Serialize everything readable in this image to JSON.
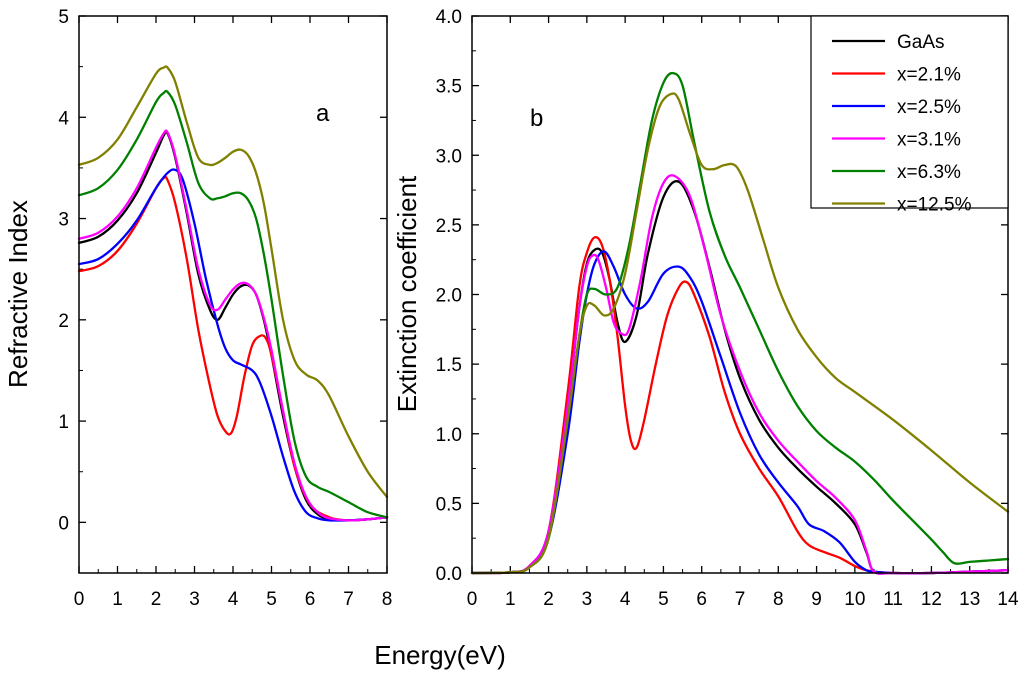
{
  "shared_xlabel": "Energy(eV)",
  "legend": [
    "GaAs",
    "x=2.1%",
    "x=2.5%",
    "x=3.1%",
    "x=6.3%",
    "x=12.5%"
  ],
  "series_colors": [
    "#000000",
    "#ff0000",
    "#0000ff",
    "#ff00ff",
    "#008000",
    "#808000"
  ],
  "chart_data": [
    {
      "type": "line",
      "panel_label": "a",
      "title": "",
      "xlabel": "Energy(eV)",
      "ylabel": "Refractive Index",
      "xlim": [
        0,
        8
      ],
      "ylim": [
        -0.5,
        5
      ],
      "xticks": [
        "0",
        "1",
        "2",
        "3",
        "4",
        "5",
        "6",
        "7",
        "8"
      ],
      "yticks": [
        "0",
        "1",
        "2",
        "3",
        "4",
        "5"
      ],
      "series": [
        {
          "name": "GaAs",
          "x": [
            0,
            0.5,
            1,
            1.5,
            2,
            2.2,
            2.3,
            2.5,
            2.8,
            3.1,
            3.4,
            3.6,
            3.8,
            4.0,
            4.2,
            4.4,
            4.6,
            4.8,
            5.0,
            5.3,
            5.6,
            5.9,
            6.2,
            6.5,
            7.0,
            7.5,
            8.0
          ],
          "y": [
            2.76,
            2.82,
            2.98,
            3.25,
            3.65,
            3.82,
            3.84,
            3.6,
            3.05,
            2.45,
            2.1,
            2.0,
            2.12,
            2.25,
            2.33,
            2.34,
            2.25,
            2.0,
            1.65,
            1.05,
            0.55,
            0.22,
            0.08,
            0.03,
            0.02,
            0.03,
            0.05
          ]
        },
        {
          "name": "x=2.1%",
          "x": [
            0,
            0.5,
            1,
            1.5,
            2,
            2.2,
            2.3,
            2.5,
            2.8,
            3.1,
            3.4,
            3.6,
            3.8,
            3.95,
            4.1,
            4.3,
            4.5,
            4.7,
            4.85,
            5.0,
            5.3,
            5.6,
            6.0,
            6.5,
            7.0,
            7.5,
            8.0
          ],
          "y": [
            2.48,
            2.53,
            2.68,
            2.95,
            3.3,
            3.4,
            3.38,
            3.15,
            2.6,
            1.9,
            1.35,
            1.05,
            0.9,
            0.88,
            1.05,
            1.45,
            1.75,
            1.84,
            1.82,
            1.65,
            1.1,
            0.55,
            0.18,
            0.05,
            0.02,
            0.03,
            0.05
          ]
        },
        {
          "name": "x=2.5%",
          "x": [
            0,
            0.5,
            1,
            1.5,
            2,
            2.3,
            2.5,
            2.7,
            3.0,
            3.3,
            3.6,
            3.8,
            4.0,
            4.2,
            4.5,
            4.7,
            5.0,
            5.3,
            5.6,
            5.9,
            6.2,
            6.5,
            7.0,
            7.5,
            8.0
          ],
          "y": [
            2.55,
            2.6,
            2.75,
            2.98,
            3.3,
            3.45,
            3.48,
            3.38,
            2.95,
            2.4,
            1.95,
            1.72,
            1.6,
            1.56,
            1.5,
            1.38,
            1.05,
            0.65,
            0.3,
            0.1,
            0.04,
            0.02,
            0.02,
            0.03,
            0.05
          ]
        },
        {
          "name": "x=3.1%",
          "x": [
            0,
            0.5,
            1,
            1.5,
            2,
            2.2,
            2.3,
            2.5,
            2.8,
            3.1,
            3.4,
            3.6,
            3.8,
            4.0,
            4.2,
            4.4,
            4.6,
            4.8,
            5.0,
            5.3,
            5.6,
            5.9,
            6.2,
            6.5,
            7.0,
            7.5,
            8.0
          ],
          "y": [
            2.8,
            2.86,
            3.02,
            3.3,
            3.7,
            3.84,
            3.85,
            3.62,
            3.08,
            2.5,
            2.15,
            2.1,
            2.2,
            2.3,
            2.36,
            2.35,
            2.25,
            2.02,
            1.7,
            1.1,
            0.58,
            0.25,
            0.1,
            0.04,
            0.02,
            0.03,
            0.05
          ]
        },
        {
          "name": "x=6.3%",
          "x": [
            0,
            0.5,
            1,
            1.5,
            2,
            2.2,
            2.3,
            2.5,
            2.8,
            3.1,
            3.4,
            3.6,
            3.8,
            4.0,
            4.2,
            4.4,
            4.6,
            4.8,
            5.0,
            5.3,
            5.6,
            5.9,
            6.2,
            6.5,
            7.0,
            7.5,
            8.0
          ],
          "y": [
            3.23,
            3.3,
            3.48,
            3.78,
            4.15,
            4.24,
            4.25,
            4.12,
            3.75,
            3.35,
            3.2,
            3.2,
            3.22,
            3.25,
            3.25,
            3.18,
            3.0,
            2.65,
            2.2,
            1.45,
            0.8,
            0.45,
            0.35,
            0.3,
            0.2,
            0.1,
            0.05
          ]
        },
        {
          "name": "x=12.5%",
          "x": [
            0,
            0.5,
            1,
            1.5,
            2,
            2.2,
            2.3,
            2.5,
            2.8,
            3.1,
            3.4,
            3.6,
            3.8,
            4.0,
            4.2,
            4.4,
            4.6,
            4.8,
            5.0,
            5.3,
            5.6,
            5.9,
            6.2,
            6.5,
            7.0,
            7.5,
            8.0
          ],
          "y": [
            3.53,
            3.6,
            3.78,
            4.1,
            4.43,
            4.49,
            4.49,
            4.35,
            3.95,
            3.6,
            3.53,
            3.55,
            3.6,
            3.66,
            3.68,
            3.62,
            3.45,
            3.15,
            2.7,
            2.0,
            1.6,
            1.46,
            1.4,
            1.25,
            0.85,
            0.5,
            0.25
          ]
        }
      ]
    },
    {
      "type": "line",
      "panel_label": "b",
      "title": "",
      "xlabel": "Energy(eV)",
      "ylabel": "Extinction coefficient",
      "xlim": [
        0,
        14
      ],
      "ylim": [
        0,
        4.0
      ],
      "xticks": [
        "0",
        "1",
        "2",
        "3",
        "4",
        "5",
        "6",
        "7",
        "8",
        "9",
        "10",
        "11",
        "12",
        "13",
        "14"
      ],
      "yticks": [
        "0.0",
        "0.5",
        "1.0",
        "1.5",
        "2.0",
        "2.5",
        "3.0",
        "3.5",
        "4.0"
      ],
      "legend_position": "top-right",
      "series": [
        {
          "name": "GaAs",
          "x": [
            0,
            1,
            1.5,
            2,
            2.5,
            2.8,
            3.0,
            3.2,
            3.4,
            3.6,
            3.8,
            4.0,
            4.3,
            4.6,
            5.0,
            5.4,
            5.8,
            6.2,
            6.6,
            7.0,
            7.5,
            8.0,
            8.5,
            9.0,
            9.5,
            10.0,
            10.3,
            10.5,
            11,
            12,
            13,
            14
          ],
          "y": [
            0,
            0.005,
            0.05,
            0.3,
            1.2,
            1.9,
            2.22,
            2.32,
            2.3,
            2.1,
            1.8,
            1.66,
            1.85,
            2.3,
            2.7,
            2.81,
            2.6,
            2.2,
            1.75,
            1.4,
            1.1,
            0.9,
            0.75,
            0.62,
            0.5,
            0.35,
            0.15,
            0.01,
            0,
            0,
            0.01,
            0.02
          ]
        },
        {
          "name": "x=2.1%",
          "x": [
            0,
            1,
            1.5,
            2,
            2.5,
            2.8,
            3.0,
            3.2,
            3.4,
            3.6,
            3.8,
            4.0,
            4.15,
            4.3,
            4.5,
            4.8,
            5.1,
            5.4,
            5.6,
            5.8,
            6.2,
            6.6,
            7.0,
            7.5,
            8.0,
            8.5,
            8.8,
            9.2,
            9.6,
            10.0,
            10.3,
            10.5,
            11,
            12,
            13,
            14
          ],
          "y": [
            0,
            0.005,
            0.05,
            0.3,
            1.3,
            2.05,
            2.3,
            2.41,
            2.35,
            2.1,
            1.7,
            1.2,
            0.95,
            0.9,
            1.1,
            1.5,
            1.85,
            2.05,
            2.09,
            2.0,
            1.7,
            1.3,
            1.0,
            0.75,
            0.55,
            0.3,
            0.2,
            0.15,
            0.11,
            0.05,
            0.02,
            0.01,
            0,
            0,
            0.01,
            0.02
          ]
        },
        {
          "name": "x=2.5%",
          "x": [
            0,
            1,
            1.5,
            2,
            2.5,
            2.8,
            3.0,
            3.2,
            3.45,
            3.7,
            4.0,
            4.3,
            4.6,
            5.0,
            5.4,
            5.7,
            6.0,
            6.5,
            7.0,
            7.5,
            8.0,
            8.5,
            8.8,
            9.2,
            9.6,
            10.0,
            10.3,
            10.5,
            11,
            12,
            13,
            14
          ],
          "y": [
            0,
            0.005,
            0.04,
            0.25,
            1.0,
            1.65,
            2.0,
            2.22,
            2.31,
            2.2,
            2.0,
            1.9,
            1.95,
            2.15,
            2.2,
            2.12,
            1.95,
            1.55,
            1.15,
            0.85,
            0.65,
            0.48,
            0.35,
            0.3,
            0.22,
            0.08,
            0.02,
            0.01,
            0,
            0,
            0.01,
            0.02
          ]
        },
        {
          "name": "x=3.1%",
          "x": [
            0,
            1,
            1.5,
            2,
            2.5,
            2.8,
            3.0,
            3.15,
            3.3,
            3.5,
            3.7,
            3.9,
            4.1,
            4.4,
            4.7,
            5.0,
            5.3,
            5.7,
            6.1,
            6.5,
            7.0,
            7.5,
            8.0,
            8.5,
            9.0,
            9.5,
            10.0,
            10.3,
            10.5,
            11,
            12,
            13,
            14
          ],
          "y": [
            0,
            0.005,
            0.05,
            0.3,
            1.2,
            1.9,
            2.2,
            2.28,
            2.25,
            2.05,
            1.8,
            1.72,
            1.75,
            2.1,
            2.55,
            2.8,
            2.85,
            2.7,
            2.3,
            1.85,
            1.45,
            1.15,
            0.95,
            0.8,
            0.66,
            0.54,
            0.38,
            0.16,
            0.01,
            0,
            0,
            0.01,
            0.02
          ]
        },
        {
          "name": "x=6.3%",
          "x": [
            0,
            1,
            1.5,
            2,
            2.5,
            2.8,
            3.0,
            3.2,
            3.5,
            3.8,
            4.1,
            4.4,
            4.7,
            5.0,
            5.25,
            5.5,
            5.8,
            6.2,
            6.6,
            7.0,
            7.5,
            8.0,
            8.5,
            9.0,
            9.5,
            10.0,
            10.5,
            11.0,
            11.5,
            12.0,
            12.3,
            12.6,
            13.0,
            13.5,
            14
          ],
          "y": [
            0,
            0.005,
            0.04,
            0.25,
            1.1,
            1.7,
            2.0,
            2.04,
            2.0,
            2.05,
            2.35,
            2.8,
            3.25,
            3.52,
            3.59,
            3.5,
            3.1,
            2.6,
            2.28,
            2.05,
            1.75,
            1.45,
            1.2,
            1.02,
            0.9,
            0.8,
            0.67,
            0.52,
            0.38,
            0.24,
            0.15,
            0.07,
            0.08,
            0.09,
            0.1
          ]
        },
        {
          "name": "x=12.5%",
          "x": [
            0,
            1,
            1.5,
            2,
            2.5,
            2.8,
            3.0,
            3.2,
            3.45,
            3.7,
            4.0,
            4.3,
            4.6,
            4.9,
            5.2,
            5.4,
            5.7,
            6.0,
            6.3,
            6.6,
            6.9,
            7.2,
            7.6,
            8.0,
            8.5,
            9.0,
            9.5,
            10.0,
            11.0,
            12.0,
            13.0,
            14
          ],
          "y": [
            0,
            0.005,
            0.04,
            0.25,
            1.1,
            1.7,
            1.92,
            1.92,
            1.85,
            1.9,
            2.15,
            2.6,
            3.05,
            3.35,
            3.44,
            3.4,
            3.15,
            2.93,
            2.9,
            2.93,
            2.92,
            2.75,
            2.4,
            2.05,
            1.75,
            1.55,
            1.4,
            1.3,
            1.1,
            0.88,
            0.65,
            0.44
          ]
        }
      ]
    }
  ]
}
